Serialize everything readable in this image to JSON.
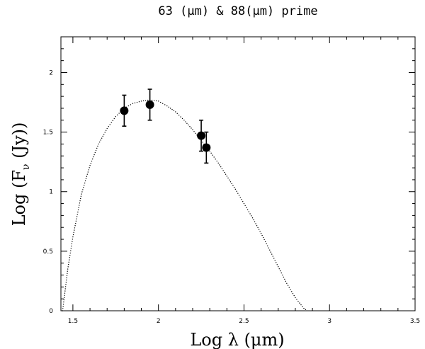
{
  "chart_data": {
    "type": "scatter",
    "title": "63 (μm) & 88(μm) prime",
    "xlabel": "Log λ (μm)",
    "ylabel": "Log (Fν (Jy))",
    "xlim": [
      1.43,
      3.5
    ],
    "ylim": [
      0,
      2.3
    ],
    "xticks": [
      1.5,
      2,
      2.5,
      3,
      3.5
    ],
    "xtick_labels": [
      "1.5",
      "2",
      "2.5",
      "3",
      "3.5"
    ],
    "yticks": [
      0,
      0.5,
      1,
      1.5,
      2
    ],
    "ytick_labels": [
      "0",
      "0.5",
      "1",
      "1.5",
      "2"
    ],
    "grid": false,
    "series": [
      {
        "kind": "points_with_errorbars",
        "x": [
          1.8,
          1.95,
          2.25,
          2.28
        ],
        "y": [
          1.68,
          1.73,
          1.47,
          1.37
        ],
        "err": [
          0.13,
          0.13,
          0.13,
          0.13
        ]
      },
      {
        "kind": "dotted_model_curve",
        "x": [
          1.44,
          1.47,
          1.5,
          1.55,
          1.6,
          1.65,
          1.7,
          1.75,
          1.8,
          1.85,
          1.9,
          1.95,
          2.0,
          2.05,
          2.1,
          2.15,
          2.2,
          2.25,
          2.3,
          2.35,
          2.4,
          2.45,
          2.5,
          2.55,
          2.6,
          2.65,
          2.7,
          2.75,
          2.8,
          2.85,
          2.87
        ],
        "y": [
          0.0,
          0.35,
          0.62,
          0.98,
          1.22,
          1.4,
          1.53,
          1.63,
          1.7,
          1.74,
          1.76,
          1.77,
          1.76,
          1.72,
          1.67,
          1.6,
          1.52,
          1.43,
          1.34,
          1.24,
          1.13,
          1.02,
          0.9,
          0.78,
          0.65,
          0.51,
          0.37,
          0.23,
          0.11,
          0.02,
          0.0
        ]
      }
    ]
  }
}
